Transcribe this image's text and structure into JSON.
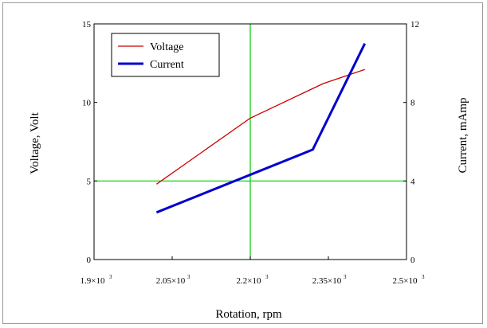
{
  "chart_data": {
    "type": "line",
    "xlabel": "Rotation, rpm",
    "ylabel_left": "Voltage, Volt",
    "ylabel_right": "Current, mAmp",
    "xlim": [
      1900,
      2500
    ],
    "ylim_left": [
      0,
      15
    ],
    "ylim_right": [
      0,
      12
    ],
    "x_ticks": [
      {
        "value": 1900,
        "mantissa": "1.9",
        "exp": "3"
      },
      {
        "value": 2050,
        "mantissa": "2.05",
        "exp": "3"
      },
      {
        "value": 2200,
        "mantissa": "2.2",
        "exp": "3"
      },
      {
        "value": 2350,
        "mantissa": "2.35",
        "exp": "3"
      },
      {
        "value": 2500,
        "mantissa": "2.5",
        "exp": "3"
      }
    ],
    "y_ticks_left": [
      "0",
      "5",
      "10",
      "15"
    ],
    "y_ticks_right": [
      "0",
      "4",
      "8",
      "12"
    ],
    "grid": "single crosshair",
    "crosshair": {
      "x": 2200,
      "y_left": 5,
      "color": "#00cc00"
    },
    "legend_position": "top-left",
    "series": [
      {
        "name": "Voltage",
        "axis": "left",
        "color": "#cc0000",
        "x": [
          2020,
          2200,
          2340,
          2420
        ],
        "y": [
          4.8,
          9.0,
          11.2,
          12.1
        ]
      },
      {
        "name": "Current",
        "axis": "right",
        "color": "#0000cc",
        "x": [
          2020,
          2320,
          2420
        ],
        "y": [
          2.4,
          5.6,
          11.0
        ]
      }
    ]
  }
}
